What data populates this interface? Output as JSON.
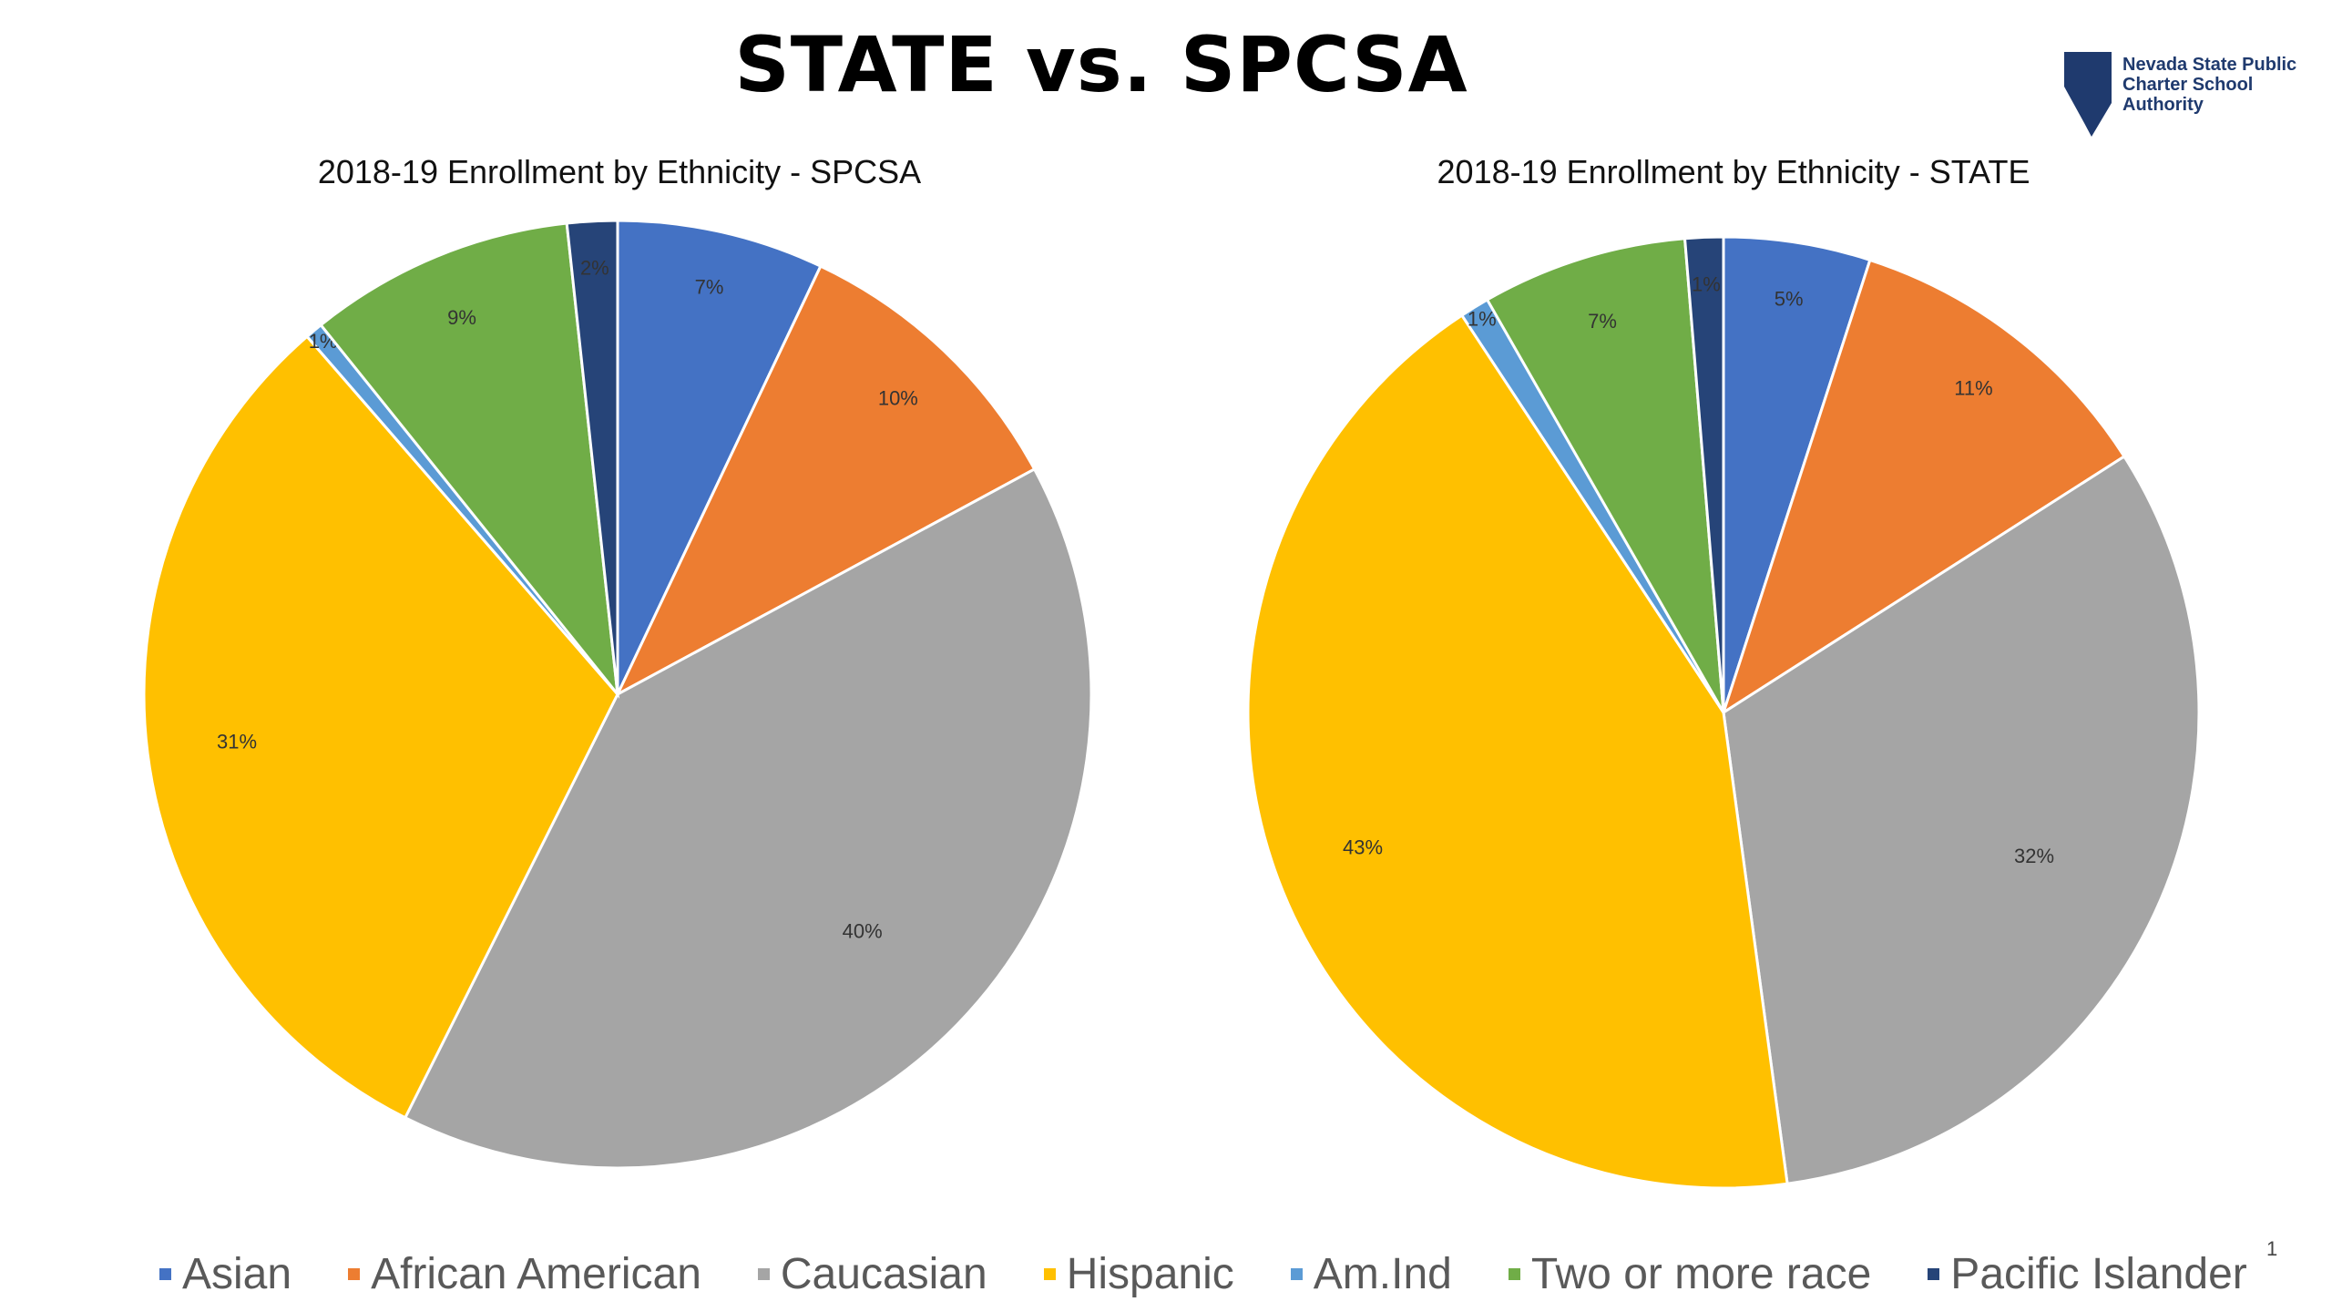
{
  "slide": {
    "title": "STATE vs. SPCSA",
    "logo_text": [
      "Nevada State Public",
      "Charter School",
      "Authority"
    ],
    "page_number": "1"
  },
  "chart_data": [
    {
      "type": "pie",
      "title": "2018-19 Enrollment by Ethnicity - SPCSA",
      "categories": [
        "Asian",
        "African American",
        "Caucasian",
        "Hispanic",
        "Am.Ind",
        "Two or more race",
        "Pacific Islander"
      ],
      "values": [
        7,
        10,
        40,
        31,
        0.6,
        9,
        1.7
      ],
      "labels": [
        "7%",
        "10%",
        "40%",
        "31%",
        "1%",
        "9%",
        "2%"
      ],
      "colors": [
        "#4472c4",
        "#ed7d31",
        "#a5a5a5",
        "#ffc000",
        "#5b9bd5",
        "#70ad47",
        "#264478"
      ]
    },
    {
      "type": "pie",
      "title": "2018-19 Enrollment by Ethnicity - STATE",
      "categories": [
        "Asian",
        "African American",
        "Caucasian",
        "Hispanic",
        "Am.Ind",
        "Two or more race",
        "Pacific Islander"
      ],
      "values": [
        5,
        11,
        32,
        43,
        1,
        7,
        1.3
      ],
      "labels": [
        "5%",
        "11%",
        "32%",
        "43%",
        "1%",
        "7%",
        "1%"
      ],
      "colors": [
        "#4472c4",
        "#ed7d31",
        "#a5a5a5",
        "#ffc000",
        "#5b9bd5",
        "#70ad47",
        "#264478"
      ]
    }
  ],
  "legend": {
    "items": [
      {
        "label": "Asian",
        "color": "#4472c4"
      },
      {
        "label": "African American",
        "color": "#ed7d31"
      },
      {
        "label": "Caucasian",
        "color": "#a5a5a5"
      },
      {
        "label": "Hispanic",
        "color": "#ffc000"
      },
      {
        "label": "Am.Ind",
        "color": "#5b9bd5"
      },
      {
        "label": "Two or more race",
        "color": "#70ad47"
      },
      {
        "label": "Pacific Islander",
        "color": "#264478"
      }
    ]
  }
}
